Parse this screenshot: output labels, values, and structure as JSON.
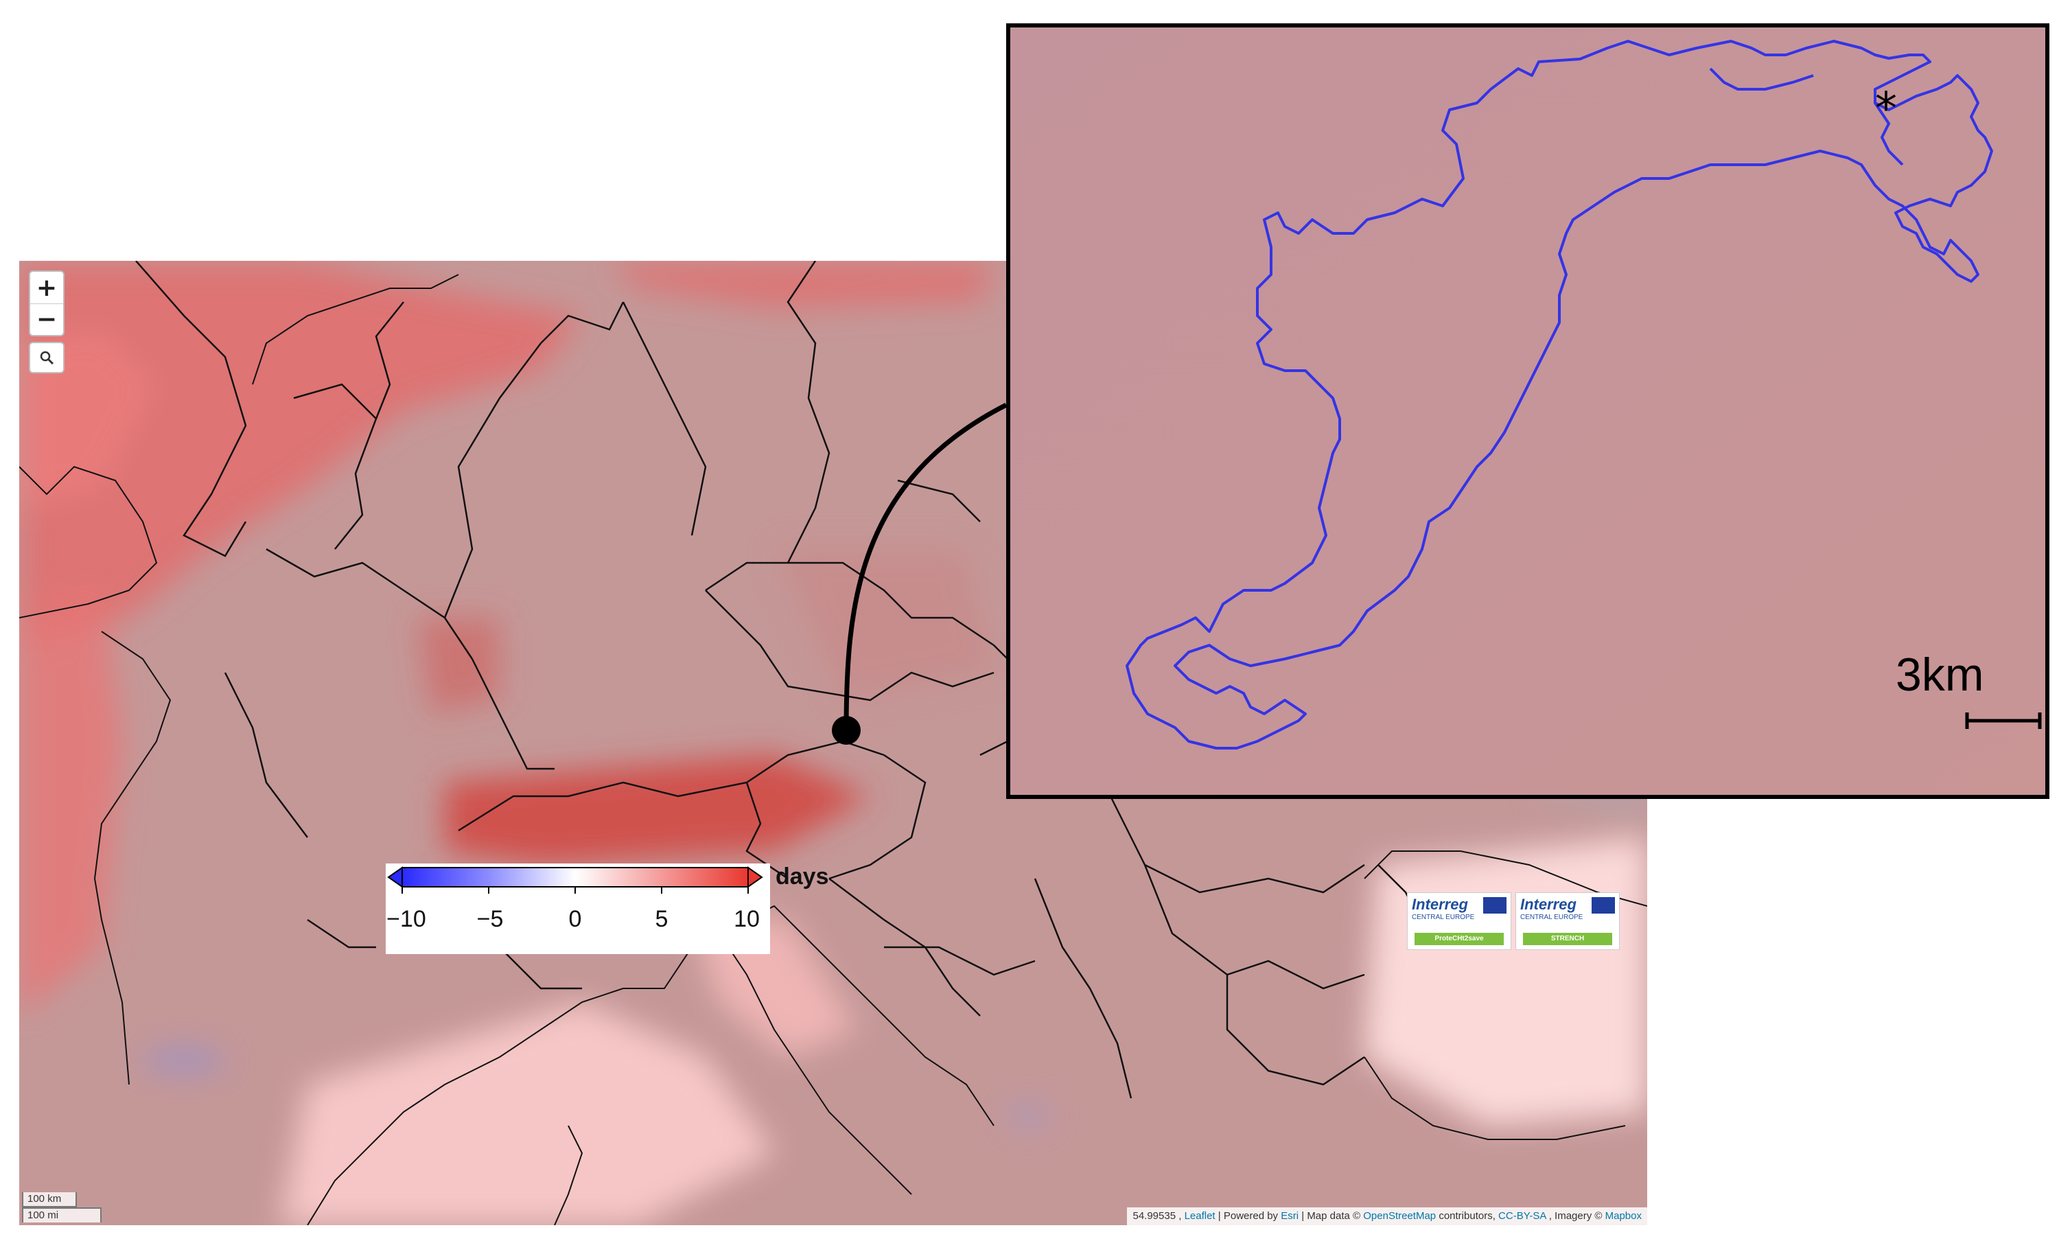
{
  "map": {
    "controls": {
      "zoom_in": "+",
      "zoom_out": "−",
      "search_icon": "search-icon"
    },
    "scale": {
      "km": "100 km",
      "mi": "100 mi"
    },
    "attribution": {
      "coords": "54.99535 ,",
      "leaflet": "Leaflet",
      "powered": "| Powered by",
      "esri": "Esri",
      "mapdata": "| Map data ©",
      "osm": "OpenStreetMap",
      "contrib": "contributors,",
      "license": "CC-BY-SA",
      "imagery": ", Imagery ©",
      "mapbox": "Mapbox"
    },
    "marker": "location-marker"
  },
  "legend": {
    "unit": "days",
    "ticks": [
      "−10",
      "−5",
      "0",
      "5",
      "10"
    ],
    "colors": [
      "#2a2aff",
      "#8c8cff",
      "#ffffff",
      "#f59a9a",
      "#e8382f"
    ]
  },
  "inset": {
    "scale_label": "3km",
    "marker_symbol": "*"
  },
  "logos": [
    {
      "name": "Interreg",
      "sub": "CENTRAL EUROPE",
      "project": "ProteCHt2save"
    },
    {
      "name": "Interreg",
      "sub": "CENTRAL EUROPE",
      "project": "STRENCH"
    }
  ]
}
